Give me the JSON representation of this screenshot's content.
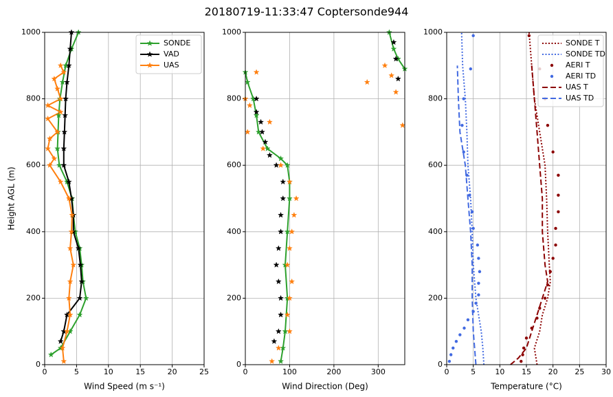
{
  "title": "20180719-11:33:47 Coptersonde944",
  "chart_data": [
    {
      "type": "line",
      "xlabel": "Wind Speed (m s⁻¹)",
      "ylabel": "Height AGL (m)",
      "xlim": [
        0,
        25
      ],
      "xticks": [
        0,
        5,
        10,
        15,
        20,
        25
      ],
      "ylim": [
        0,
        1000
      ],
      "yticks": [
        0,
        200,
        400,
        600,
        800,
        1000
      ],
      "grid": true,
      "legend": "upper right",
      "series": [
        {
          "name": "SONDE",
          "color": "#2ca02c",
          "line": "solid",
          "marker": "star",
          "x": [
            1.0,
            2.5,
            4.0,
            5.5,
            6.5,
            6.0,
            5.8,
            5.5,
            4.8,
            4.5,
            4.3,
            3.5,
            2.3,
            2.0,
            2.1,
            2.2,
            2.4,
            2.8,
            3.3,
            4.2,
            5.3
          ],
          "y": [
            30,
            50,
            100,
            150,
            200,
            250,
            300,
            350,
            400,
            450,
            500,
            550,
            600,
            650,
            700,
            750,
            800,
            850,
            900,
            950,
            1000
          ]
        },
        {
          "name": "VAD",
          "color": "#000000",
          "line": "solid",
          "marker": "star",
          "x": [
            2.5,
            3.0,
            3.5,
            5.5,
            5.8,
            5.6,
            5.3,
            4.5,
            4.5,
            4.2,
            3.8,
            3.0,
            3.0,
            3.1,
            3.2,
            3.3,
            3.5,
            3.8,
            4.0,
            4.2
          ],
          "y": [
            70,
            100,
            150,
            200,
            250,
            300,
            350,
            400,
            450,
            500,
            550,
            600,
            650,
            700,
            750,
            800,
            850,
            900,
            950,
            1000
          ]
        },
        {
          "name": "UAS",
          "color": "#ff7f0e",
          "line": "solid",
          "marker": "star",
          "x": [
            3.0,
            2.8,
            3.5,
            4.0,
            3.8,
            4.0,
            4.5,
            4.0,
            4.2,
            4.3,
            3.8,
            2.5,
            0.8,
            1.5,
            0.5,
            0.8,
            2.0,
            0.5,
            2.5,
            0.5,
            2.5,
            2.0,
            1.5,
            3.0,
            2.5
          ],
          "y": [
            10,
            50,
            100,
            150,
            200,
            250,
            300,
            350,
            400,
            450,
            500,
            550,
            600,
            620,
            650,
            680,
            700,
            740,
            760,
            780,
            800,
            830,
            860,
            880,
            900
          ]
        }
      ]
    },
    {
      "type": "line",
      "xlabel": "Wind Direction (Deg)",
      "xlim": [
        0,
        360
      ],
      "xticks": [
        0,
        100,
        200,
        300
      ],
      "ylim": [
        0,
        1000
      ],
      "yticks": [
        0,
        200,
        400,
        600,
        800,
        1000
      ],
      "grid": true,
      "series": [
        {
          "name": "SONDE",
          "color": "#2ca02c",
          "line": "solid",
          "marker": "star",
          "x": [
            80,
            85,
            90,
            95,
            90,
            95,
            100,
            100,
            95,
            80,
            50,
            30,
            25,
            18,
            5,
            0,
            null,
            360,
            345,
            335,
            325
          ],
          "y": [
            10,
            50,
            100,
            200,
            300,
            400,
            500,
            550,
            600,
            620,
            650,
            700,
            750,
            800,
            850,
            880,
            null,
            890,
            920,
            950,
            1000
          ]
        },
        {
          "name": "VAD",
          "color": "#000000",
          "line": null,
          "marker": "star",
          "x": [
            65,
            75,
            80,
            80,
            75,
            70,
            75,
            80,
            80,
            85,
            85,
            70,
            55,
            45,
            38,
            35,
            25,
            25,
            345,
            340,
            335
          ],
          "y": [
            70,
            100,
            150,
            200,
            250,
            300,
            350,
            400,
            450,
            500,
            550,
            600,
            630,
            670,
            700,
            730,
            760,
            800,
            860,
            920,
            970
          ]
        },
        {
          "name": "UAS",
          "color": "#ff7f0e",
          "line": null,
          "marker": "star",
          "x": [
            60,
            75,
            100,
            95,
            100,
            105,
            95,
            100,
            105,
            110,
            115,
            100,
            80,
            40,
            5,
            55,
            10,
            0,
            275,
            330,
            25,
            315,
            355,
            340
          ],
          "y": [
            10,
            50,
            100,
            150,
            200,
            250,
            300,
            350,
            400,
            450,
            500,
            550,
            600,
            650,
            700,
            730,
            780,
            800,
            850,
            870,
            880,
            900,
            720,
            820
          ]
        }
      ]
    },
    {
      "type": "line",
      "xlabel": "Temperature (°C)",
      "xlim": [
        0,
        30
      ],
      "xticks": [
        0,
        5,
        10,
        15,
        20,
        25,
        30
      ],
      "ylim": [
        0,
        1000
      ],
      "yticks": [
        0,
        200,
        400,
        600,
        800,
        1000
      ],
      "grid": true,
      "legend": "upper right",
      "series": [
        {
          "name": "SONDE T",
          "color": "#8b0000",
          "line": "dotted",
          "marker": null,
          "x": [
            17,
            16.5,
            17.5,
            18,
            19,
            19.5,
            19.3,
            19,
            18.8,
            18.5,
            17.5,
            16.5,
            16,
            15.5
          ],
          "y": [
            0,
            50,
            100,
            150,
            200,
            250,
            300,
            400,
            500,
            600,
            700,
            800,
            900,
            1000
          ]
        },
        {
          "name": "SONDE TD",
          "color": "#4169e1",
          "line": "dotted",
          "marker": null,
          "x": [
            7,
            6.8,
            6.5,
            6,
            5.5,
            5,
            4.8,
            4.5,
            4,
            3.8,
            3.5,
            3,
            2.8
          ],
          "y": [
            0,
            50,
            100,
            150,
            200,
            300,
            400,
            500,
            600,
            700,
            800,
            900,
            1000
          ]
        },
        {
          "name": "AERI T",
          "color": "#8b0000",
          "line": null,
          "marker": "dot",
          "x": [
            14,
            14.3,
            14.5,
            15,
            16,
            17,
            17.5,
            18.5,
            19,
            19.5,
            20,
            20.5,
            20.5,
            21,
            21,
            21,
            20,
            19,
            18.5,
            17.5,
            15.5
          ],
          "y": [
            10,
            30,
            50,
            80,
            110,
            140,
            170,
            200,
            240,
            280,
            320,
            360,
            410,
            460,
            510,
            570,
            640,
            720,
            800,
            890,
            990
          ]
        },
        {
          "name": "AERI TD",
          "color": "#4169e1",
          "line": null,
          "marker": "dot",
          "x": [
            0.5,
            0.8,
            1.2,
            1.8,
            2.5,
            3.3,
            4,
            5,
            5.5,
            6,
            6,
            6.2,
            6,
            5.8,
            5,
            4.8,
            4.3,
            3.8,
            3.2,
            2.9,
            3.2,
            4.5,
            5
          ],
          "y": [
            10,
            30,
            50,
            70,
            90,
            110,
            135,
            160,
            185,
            210,
            245,
            280,
            320,
            360,
            410,
            460,
            510,
            570,
            640,
            720,
            800,
            890,
            990
          ]
        },
        {
          "name": "UAS T",
          "color": "#8b0000",
          "line": "dashed",
          "marker": null,
          "x": [
            12,
            13.5,
            15,
            16,
            17,
            18,
            19,
            18.5,
            18,
            18,
            17.5,
            17,
            16.5,
            16
          ],
          "y": [
            0,
            20,
            50,
            100,
            150,
            200,
            250,
            300,
            400,
            500,
            600,
            700,
            800,
            900
          ]
        },
        {
          "name": "UAS TD",
          "color": "#4169e1",
          "line": "dashed",
          "marker": null,
          "x": [
            5.5,
            5,
            4.8,
            4.8,
            4.5,
            4,
            3.5,
            2.5,
            2.2,
            2
          ],
          "y": [
            0,
            100,
            200,
            300,
            400,
            500,
            600,
            700,
            800,
            900
          ]
        }
      ]
    }
  ]
}
